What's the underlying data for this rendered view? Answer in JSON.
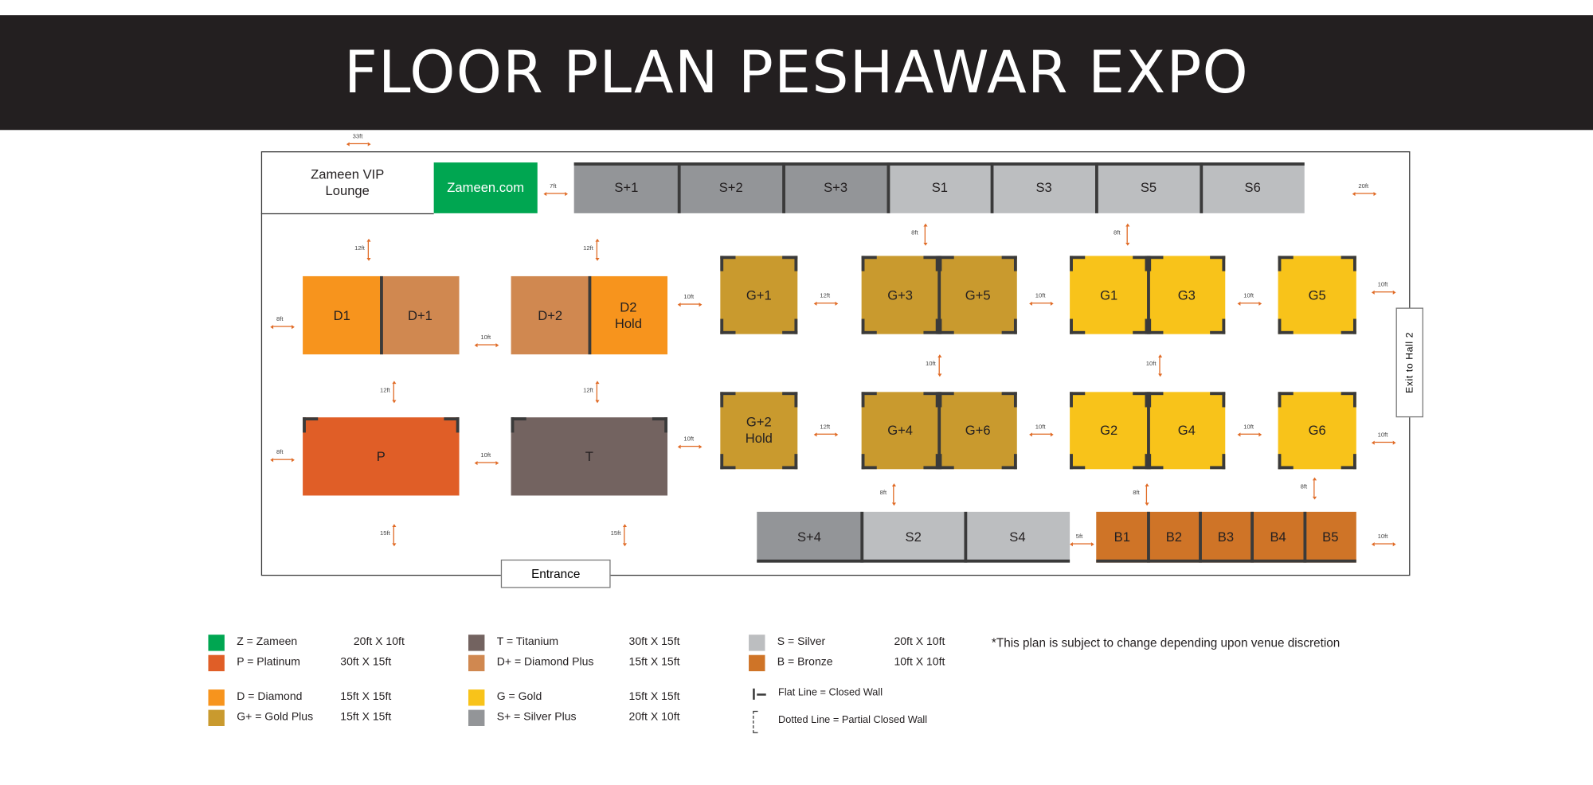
{
  "title": "FLOOR PLAN PESHAWAR EXPO",
  "colors": {
    "Z": "#00a651",
    "P": "#e05e27",
    "D": "#f7941d",
    "G+": "#c99a2e",
    "T": "#736360",
    "D+": "#d08850",
    "G": "#f8c31a",
    "S+": "#939598",
    "S": "#bcbec0",
    "B": "#cf7427",
    "wall": "#3a3a3a",
    "dimension_arrow": "#e06a25",
    "header": "#231f20"
  },
  "lounge": "Zameen VIP\nLounge",
  "entrance": "Entrance",
  "exit": "Exit to Hall 2",
  "booths": [
    {
      "label": "Zameen.com",
      "tier": "Z"
    },
    {
      "label": "S+1",
      "tier": "S+"
    },
    {
      "label": "S+2",
      "tier": "S+"
    },
    {
      "label": "S+3",
      "tier": "S+"
    },
    {
      "label": "S1",
      "tier": "S"
    },
    {
      "label": "S3",
      "tier": "S"
    },
    {
      "label": "S5",
      "tier": "S"
    },
    {
      "label": "S6",
      "tier": "S"
    },
    {
      "label": "D1",
      "tier": "D"
    },
    {
      "label": "D+1",
      "tier": "D+"
    },
    {
      "label": "D+2",
      "tier": "D+"
    },
    {
      "label": "D2\nHold",
      "tier": "D"
    },
    {
      "label": "G+1",
      "tier": "G+"
    },
    {
      "label": "G+3",
      "tier": "G+"
    },
    {
      "label": "G+5",
      "tier": "G+"
    },
    {
      "label": "G1",
      "tier": "G"
    },
    {
      "label": "G3",
      "tier": "G"
    },
    {
      "label": "G5",
      "tier": "G"
    },
    {
      "label": "P",
      "tier": "P"
    },
    {
      "label": "T",
      "tier": "T"
    },
    {
      "label": "G+2\nHold",
      "tier": "G+"
    },
    {
      "label": "G+4",
      "tier": "G+"
    },
    {
      "label": "G+6",
      "tier": "G+"
    },
    {
      "label": "G2",
      "tier": "G"
    },
    {
      "label": "G4",
      "tier": "G"
    },
    {
      "label": "G6",
      "tier": "G"
    },
    {
      "label": "S+4",
      "tier": "S+"
    },
    {
      "label": "S2",
      "tier": "S"
    },
    {
      "label": "S4",
      "tier": "S"
    },
    {
      "label": "B1",
      "tier": "B"
    },
    {
      "label": "B2",
      "tier": "B"
    },
    {
      "label": "B3",
      "tier": "B"
    },
    {
      "label": "B4",
      "tier": "B"
    },
    {
      "label": "B5",
      "tier": "B"
    }
  ],
  "dimensions": [
    "33ft",
    "7ft",
    "20ft",
    "12ft",
    "12ft",
    "8ft",
    "8ft",
    "8ft",
    "10ft",
    "10ft",
    "12ft",
    "10ft",
    "10ft",
    "10ft",
    "12ft",
    "12ft",
    "10ft",
    "10ft",
    "8ft",
    "10ft",
    "10ft",
    "12ft",
    "10ft",
    "10ft",
    "10ft",
    "8ft",
    "8ft",
    "8ft",
    "15ft",
    "15ft",
    "5ft",
    "10ft"
  ],
  "legend": [
    {
      "tier": "Z",
      "label": "Z = Zameen",
      "size": "20ft X 10ft"
    },
    {
      "tier": "P",
      "label": "P = Platinum",
      "size": "30ft X 15ft"
    },
    {
      "tier": "D",
      "label": "D = Diamond",
      "size": "15ft X 15ft"
    },
    {
      "tier": "G+",
      "label": "G+ = Gold Plus",
      "size": "15ft X 15ft"
    },
    {
      "tier": "T",
      "label": "T = Titanium",
      "size": "30ft X 15ft"
    },
    {
      "tier": "D+",
      "label": "D+ = Diamond Plus",
      "size": "15ft X 15ft"
    },
    {
      "tier": "G",
      "label": "G = Gold",
      "size": "15ft X 15ft"
    },
    {
      "tier": "S+",
      "label": "S+ = Silver Plus",
      "size": "20ft X 10ft"
    },
    {
      "tier": "S",
      "label": "S = Silver",
      "size": "20ft X 10ft"
    },
    {
      "tier": "B",
      "label": "B = Bronze",
      "size": "10ft X 10ft"
    }
  ],
  "wall_legend": {
    "flat": "Flat Line = Closed Wall",
    "dotted": "Dotted Line = Partial Closed Wall"
  },
  "note": "*This plan is subject to change depending upon venue discretion"
}
